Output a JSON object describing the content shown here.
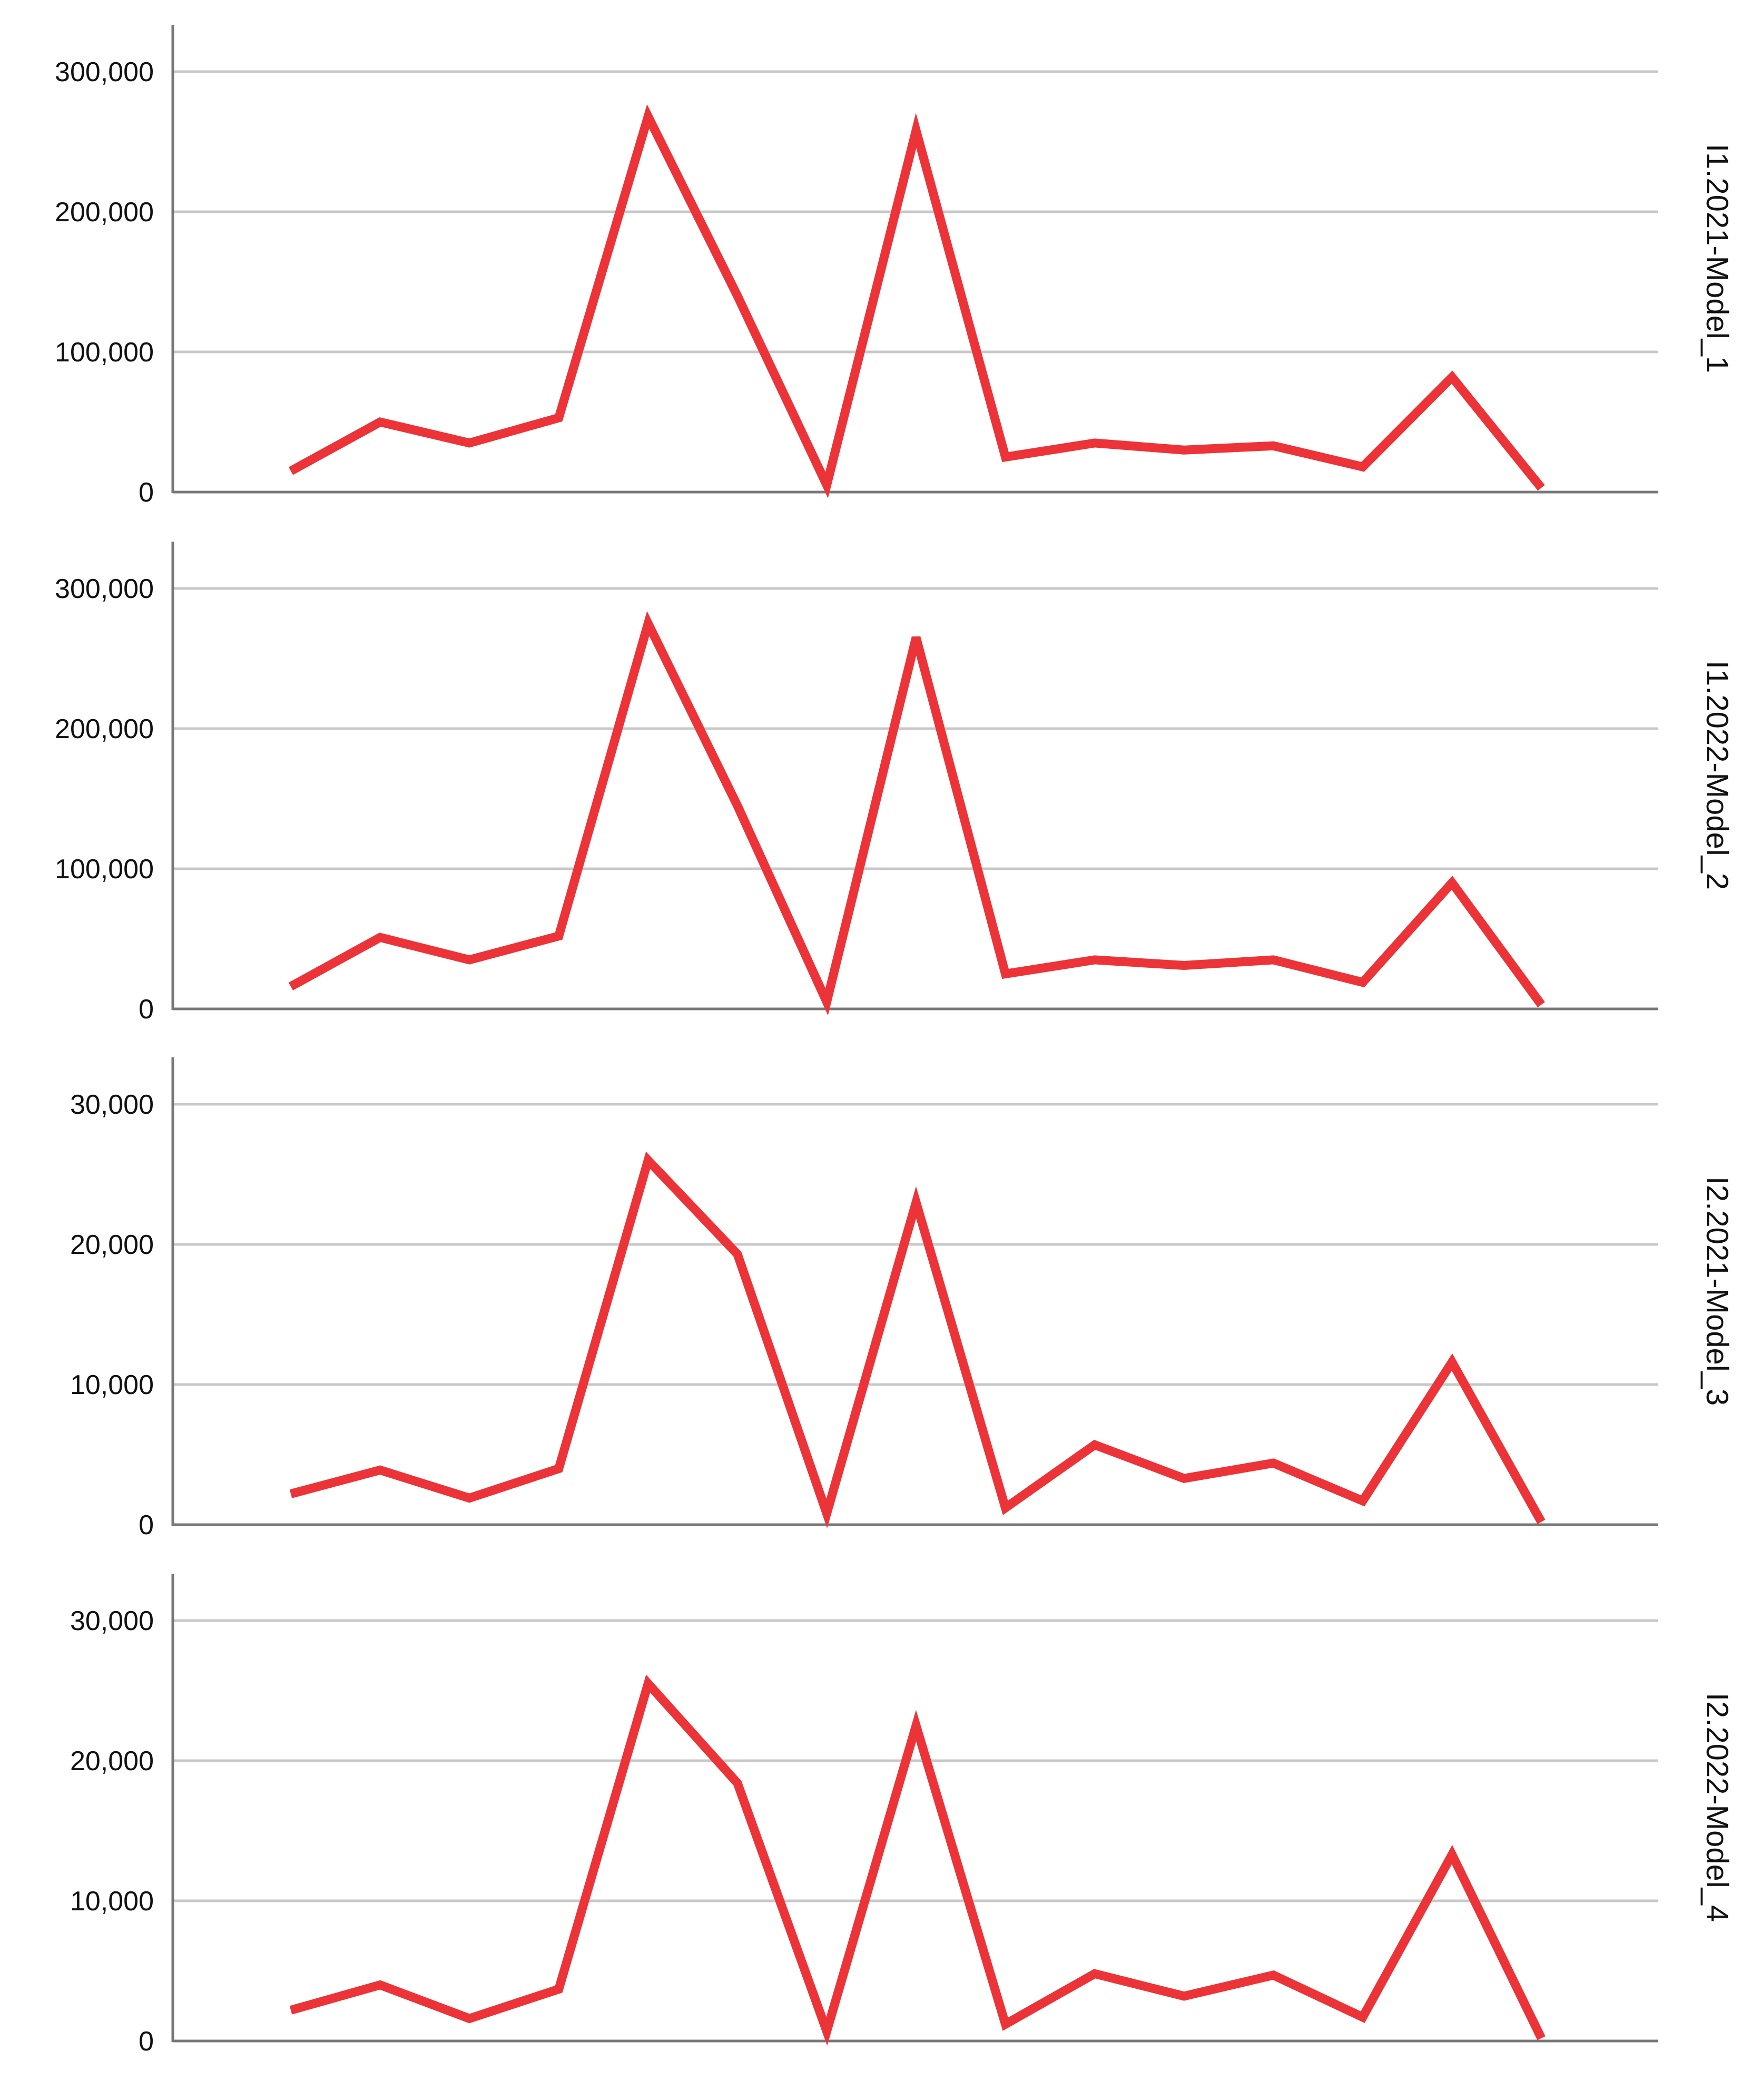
{
  "chart_data": [
    {
      "type": "line",
      "panel_label": "I1.2021-Model_1",
      "x": [
        1,
        2,
        3,
        4,
        5,
        6,
        7,
        8,
        9,
        10,
        11,
        12,
        13,
        14,
        15
      ],
      "values": [
        15000,
        50000,
        35000,
        53000,
        268000,
        140000,
        5000,
        258000,
        25000,
        35000,
        30000,
        33000,
        18000,
        82000,
        3000
      ],
      "yticks": [
        0,
        100000,
        200000,
        300000
      ],
      "yticks_labels": [
        "0",
        "100,000",
        "200,000",
        "300,000"
      ],
      "ylim": [
        0,
        335000
      ],
      "grid": true
    },
    {
      "type": "line",
      "panel_label": "I1.2022-Model_2",
      "x": [
        1,
        2,
        3,
        4,
        5,
        6,
        7,
        8,
        9,
        10,
        11,
        12,
        13,
        14,
        15
      ],
      "values": [
        16000,
        51000,
        35000,
        52000,
        275000,
        145000,
        5000,
        265000,
        25000,
        35000,
        31000,
        35000,
        19000,
        90000,
        3000
      ],
      "yticks": [
        0,
        100000,
        200000,
        300000
      ],
      "yticks_labels": [
        "0",
        "100,000",
        "200,000",
        "300,000"
      ],
      "ylim": [
        0,
        335000
      ],
      "grid": true
    },
    {
      "type": "line",
      "panel_label": "I2.2021-Model_3",
      "x": [
        1,
        2,
        3,
        4,
        5,
        6,
        7,
        8,
        9,
        10,
        11,
        12,
        13,
        14,
        15
      ],
      "values": [
        2200,
        3900,
        1900,
        4000,
        26000,
        19300,
        800,
        23000,
        1200,
        5700,
        3300,
        4400,
        1700,
        11600,
        200
      ],
      "yticks": [
        0,
        10000,
        20000,
        30000
      ],
      "yticks_labels": [
        "0",
        "10,000",
        "20,000",
        "30,000"
      ],
      "ylim": [
        0,
        33500
      ],
      "grid": true
    },
    {
      "type": "line",
      "panel_label": "I2.2022-Model_4",
      "x": [
        1,
        2,
        3,
        4,
        5,
        6,
        7,
        8,
        9,
        10,
        11,
        12,
        13,
        14,
        15
      ],
      "values": [
        2200,
        4000,
        1600,
        3700,
        25500,
        18400,
        700,
        22500,
        1200,
        4800,
        3200,
        4700,
        1700,
        13300,
        200
      ],
      "yticks": [
        0,
        10000,
        20000,
        30000
      ],
      "yticks_labels": [
        "0",
        "10,000",
        "20,000",
        "30,000"
      ],
      "ylim": [
        0,
        33500
      ],
      "grid": true
    }
  ],
  "colors": {
    "series": "#ec3438",
    "grid": "#c8c8c8",
    "axis": "#777777",
    "text": "#111111"
  }
}
